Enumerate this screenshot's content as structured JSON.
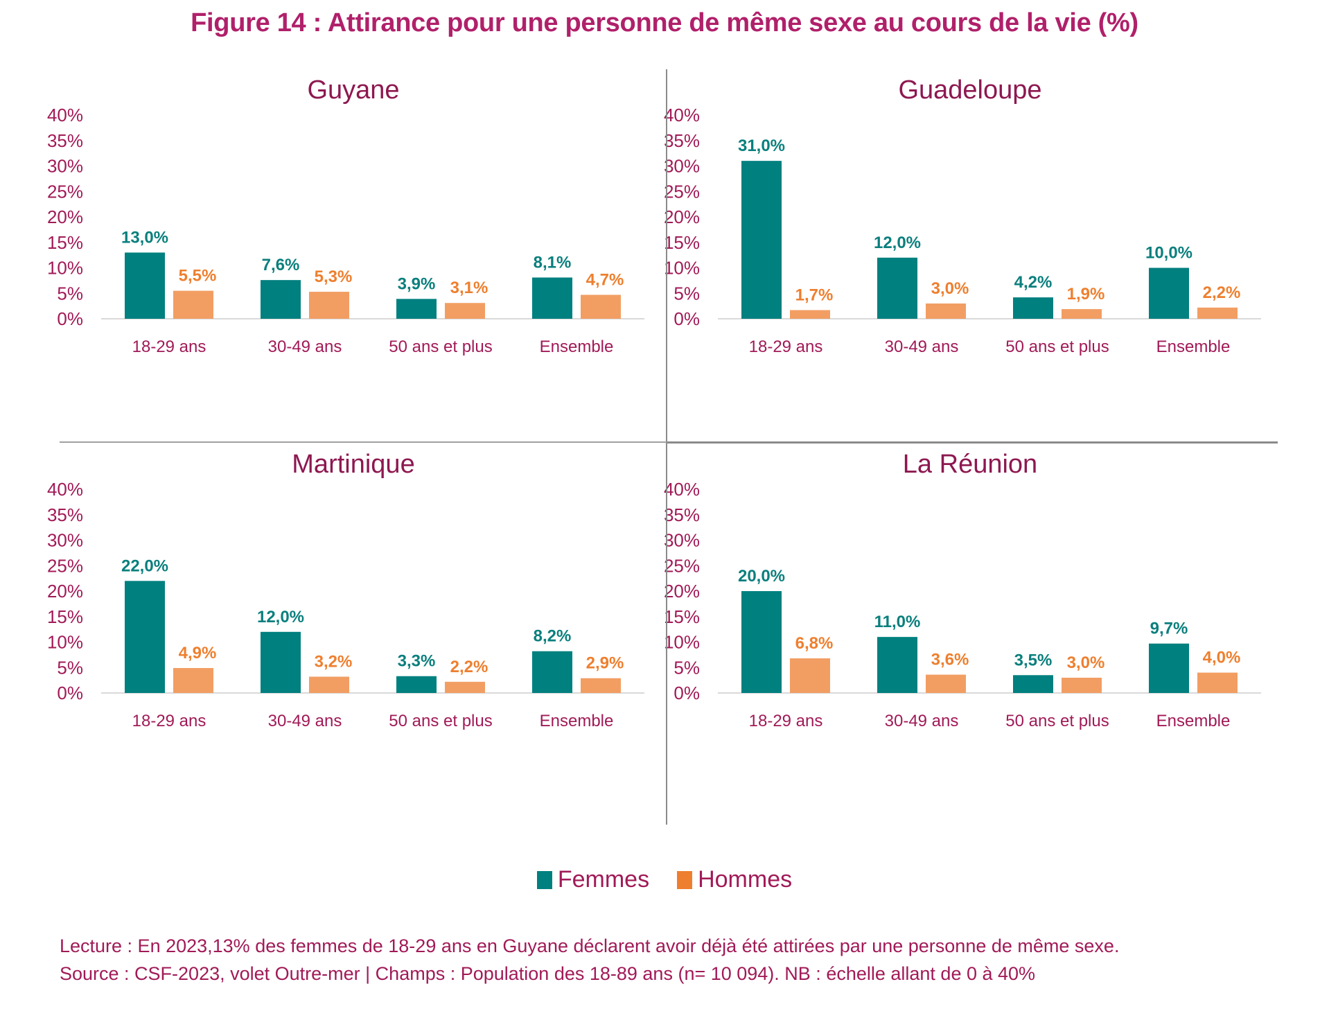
{
  "figure_title": "Figure 14 : Attirance pour une personne de même sexe au cours de la vie (%)",
  "colors": {
    "title": "#b0206a",
    "axis_text": "#a11a57",
    "femmes": "#00807f",
    "hommes": "#f29e63",
    "hommes_label": "#ee7f2e",
    "femmes_label": "#0a7f7d"
  },
  "chart_data": [
    {
      "type": "bar",
      "title": "Guyane",
      "categories": [
        "18-29 ans",
        "30-49 ans",
        "50 ans et plus",
        "Ensemble"
      ],
      "series": [
        {
          "name": "Femmes",
          "values": [
            13.0,
            7.6,
            3.9,
            8.1
          ],
          "labels": [
            "13,0%",
            "7,6%",
            "3,9%",
            "8,1%"
          ]
        },
        {
          "name": "Hommes",
          "values": [
            5.5,
            5.3,
            3.1,
            4.7
          ],
          "labels": [
            "5,5%",
            "5,3%",
            "3,1%",
            "4,7%"
          ]
        }
      ],
      "yticks": [
        "0%",
        "5%",
        "10%",
        "15%",
        "20%",
        "25%",
        "30%",
        "35%",
        "40%"
      ],
      "ylim": [
        0,
        40
      ],
      "xlabel": "",
      "ylabel": "",
      "grid": false
    },
    {
      "type": "bar",
      "title": "Guadeloupe",
      "categories": [
        "18-29 ans",
        "30-49 ans",
        "50 ans et plus",
        "Ensemble"
      ],
      "series": [
        {
          "name": "Femmes",
          "values": [
            31.0,
            12.0,
            4.2,
            10.0
          ],
          "labels": [
            "31,0%",
            "12,0%",
            "4,2%",
            "10,0%"
          ]
        },
        {
          "name": "Hommes",
          "values": [
            1.7,
            3.0,
            1.9,
            2.2
          ],
          "labels": [
            "1,7%",
            "3,0%",
            "1,9%",
            "2,2%"
          ]
        }
      ],
      "yticks": [
        "0%",
        "5%",
        "10%",
        "15%",
        "20%",
        "25%",
        "30%",
        "35%",
        "40%"
      ],
      "ylim": [
        0,
        40
      ],
      "xlabel": "",
      "ylabel": "",
      "grid": false
    },
    {
      "type": "bar",
      "title": "Martinique",
      "categories": [
        "18-29 ans",
        "30-49 ans",
        "50 ans et plus",
        "Ensemble"
      ],
      "series": [
        {
          "name": "Femmes",
          "values": [
            22.0,
            12.0,
            3.3,
            8.2
          ],
          "labels": [
            "22,0%",
            "12,0%",
            "3,3%",
            "8,2%"
          ]
        },
        {
          "name": "Hommes",
          "values": [
            4.9,
            3.2,
            2.2,
            2.9
          ],
          "labels": [
            "4,9%",
            "3,2%",
            "2,2%",
            "2,9%"
          ]
        }
      ],
      "yticks": [
        "0%",
        "5%",
        "10%",
        "15%",
        "20%",
        "25%",
        "30%",
        "35%",
        "40%"
      ],
      "ylim": [
        0,
        40
      ],
      "xlabel": "",
      "ylabel": "",
      "grid": false
    },
    {
      "type": "bar",
      "title": "La Réunion",
      "categories": [
        "18-29 ans",
        "30-49 ans",
        "50 ans et plus",
        "Ensemble"
      ],
      "series": [
        {
          "name": "Femmes",
          "values": [
            20.0,
            11.0,
            3.5,
            9.7
          ],
          "labels": [
            "20,0%",
            "11,0%",
            "3,5%",
            "9,7%"
          ]
        },
        {
          "name": "Hommes",
          "values": [
            6.8,
            3.6,
            3.0,
            4.0
          ],
          "labels": [
            "6,8%",
            "3,6%",
            "3,0%",
            "4,0%"
          ]
        }
      ],
      "yticks": [
        "0%",
        "5%",
        "10%",
        "15%",
        "20%",
        "25%",
        "30%",
        "35%",
        "40%"
      ],
      "ylim": [
        0,
        40
      ],
      "xlabel": "",
      "ylabel": "",
      "grid": false
    }
  ],
  "legend": {
    "placement": "bottom-center",
    "items": [
      {
        "name": "Femmes",
        "color": "#00807f"
      },
      {
        "name": "Hommes",
        "color": "#ee7f2e"
      }
    ]
  },
  "notes": {
    "lecture": "Lecture : En 2023,13% des femmes de 18-29 ans en Guyane déclarent avoir déjà été attirées par une personne de même sexe.",
    "source": "Source : CSF-2023, volet Outre-mer | Champs : Population des 18-89 ans (n= 10 094). NB : échelle allant de 0 à 40%"
  }
}
